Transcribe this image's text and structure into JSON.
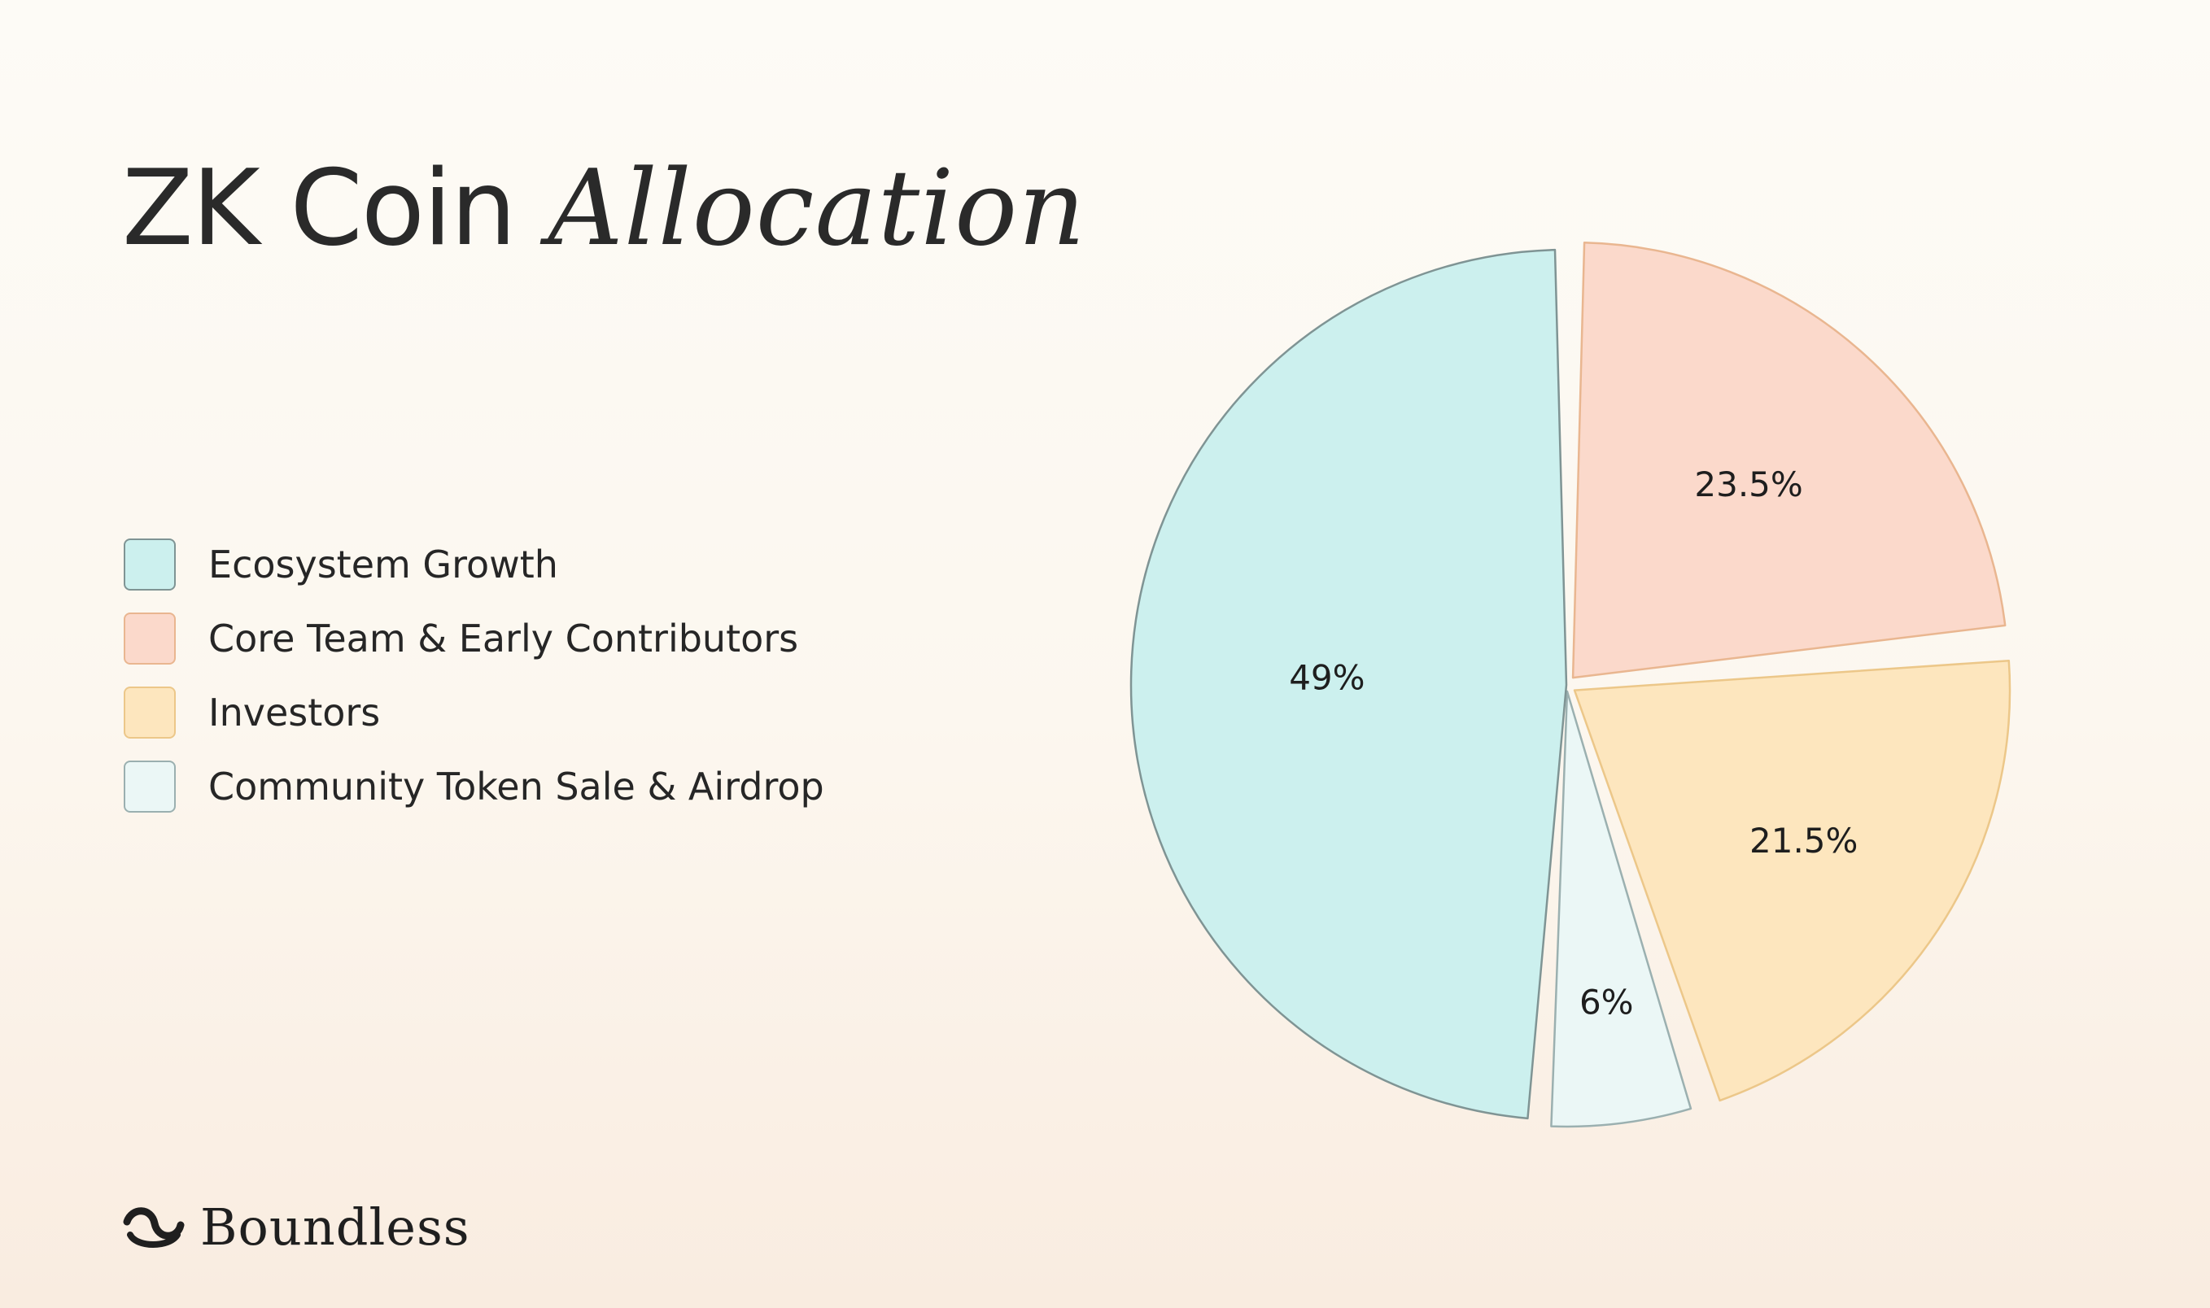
{
  "header": {
    "title_main": "ZK Coin",
    "title_accent": "Allocation"
  },
  "chart_data": {
    "type": "pie",
    "title": "ZK Coin Allocation",
    "legend_position": "left",
    "slices": [
      {
        "label": "Ecosystem Growth",
        "value": 49,
        "display": "49%",
        "color": "#ccf0ee",
        "stroke": "#7f9494"
      },
      {
        "label": "Core Team & Early Contributors",
        "value": 23.5,
        "display": "23.5%",
        "color": "#fbd9cb",
        "stroke": "#e9b690"
      },
      {
        "label": "Investors",
        "value": 21.5,
        "display": "21.5%",
        "color": "#fde6be",
        "stroke": "#ecc789"
      },
      {
        "label": "Community Token Sale & Airdrop",
        "value": 6,
        "display": "6%",
        "color": "#ebf7f6",
        "stroke": "#9bb0b0"
      }
    ]
  },
  "brand": {
    "name": "Boundless",
    "icon": "boundless-logo-icon"
  }
}
